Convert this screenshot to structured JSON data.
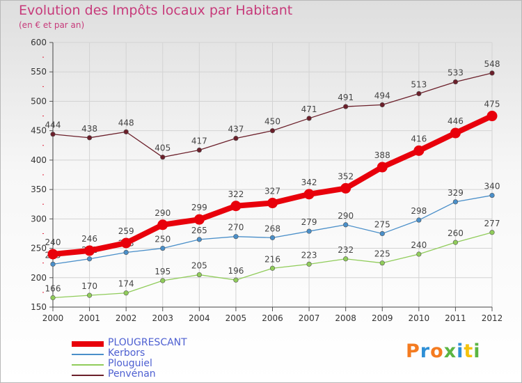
{
  "title": "Evolution des Impôts locaux par Habitant",
  "subtitle": "(en € et par an)",
  "logo": {
    "text": "Proxiti",
    "colors": [
      "#f47b20",
      "#2e8fd6",
      "#f47b20",
      "#5bb543",
      "#2e8fd6",
      "#f4c20d",
      "#5bb543"
    ]
  },
  "chart_data": {
    "type": "line",
    "categories": [
      "2000",
      "2001",
      "2002",
      "2003",
      "2004",
      "2005",
      "2006",
      "2007",
      "2008",
      "2009",
      "2010",
      "2011",
      "2012"
    ],
    "ylim": [
      150,
      600
    ],
    "yticks": [
      150,
      200,
      250,
      300,
      350,
      400,
      450,
      500,
      550,
      600
    ],
    "grid": true,
    "legend_position": "bottom-left",
    "series": [
      {
        "name": "PLOUGRESCANT",
        "color": "#e8000b",
        "emphasis": true,
        "values": [
          240,
          246,
          259,
          290,
          299,
          322,
          327,
          342,
          352,
          388,
          416,
          446,
          475
        ]
      },
      {
        "name": "Kerbors",
        "color": "#4a8fc9",
        "values": [
          223,
          232,
          243,
          250,
          265,
          270,
          268,
          279,
          290,
          275,
          298,
          329,
          340
        ]
      },
      {
        "name": "Plouguiel",
        "color": "#90cc5a",
        "values": [
          166,
          170,
          174,
          195,
          205,
          196,
          216,
          223,
          232,
          225,
          240,
          260,
          277
        ]
      },
      {
        "name": "Penvénan",
        "color": "#6b1f2a",
        "values": [
          444,
          438,
          448,
          405,
          417,
          437,
          450,
          471,
          491,
          494,
          513,
          533,
          548
        ]
      }
    ]
  }
}
